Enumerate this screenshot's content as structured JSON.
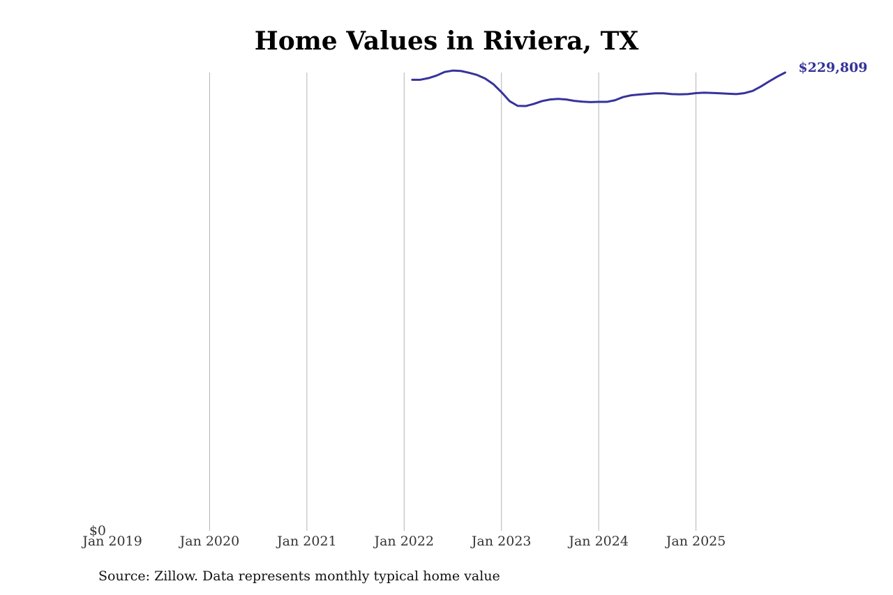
{
  "title": "Home Values in Riviera, TX",
  "source_note": "Source: Zillow. Data represents monthly typical home value",
  "colors": {
    "line": "#36339a",
    "grid": "#b3b3b3",
    "text": "#333333"
  },
  "chart_data": {
    "type": "line",
    "title": "Home Values in Riviera, TX",
    "xlabel": "",
    "ylabel": "",
    "grid": "vertical",
    "xlim": [
      "2019-01",
      "2026-01"
    ],
    "ylim": [
      0,
      229809
    ],
    "x_tick_labels": [
      "Jan 2019",
      "Jan 2020",
      "Jan 2021",
      "Jan 2022",
      "Jan 2023",
      "Jan 2024",
      "Jan 2025"
    ],
    "x_tick_dates": [
      "2019-01",
      "2020-01",
      "2021-01",
      "2022-01",
      "2023-01",
      "2024-01",
      "2025-01"
    ],
    "y_tick_labels": [
      "$0"
    ],
    "end_label": "$229,809",
    "series": [
      {
        "x": [
          "2022-02",
          "2022-03",
          "2022-04",
          "2022-05",
          "2022-06",
          "2022-07",
          "2022-08",
          "2022-09",
          "2022-10",
          "2022-11",
          "2022-12",
          "2023-01",
          "2023-02",
          "2023-03",
          "2023-04",
          "2023-05",
          "2023-06",
          "2023-07",
          "2023-08",
          "2023-09",
          "2023-10",
          "2023-11",
          "2023-12",
          "2024-01",
          "2024-02",
          "2024-03",
          "2024-04",
          "2024-05",
          "2024-06",
          "2024-07",
          "2024-08",
          "2024-09",
          "2024-10",
          "2024-11",
          "2024-12",
          "2025-01",
          "2025-02",
          "2025-03",
          "2025-04",
          "2025-05",
          "2025-06",
          "2025-07",
          "2025-08",
          "2025-09",
          "2025-10",
          "2025-11",
          "2025-12"
        ],
        "values": [
          226200,
          226200,
          227000,
          228300,
          230100,
          230800,
          230600,
          229700,
          228600,
          226800,
          224000,
          220000,
          215500,
          213100,
          213000,
          214100,
          215500,
          216300,
          216600,
          216300,
          215600,
          215200,
          215000,
          215100,
          215100,
          215900,
          217500,
          218400,
          218800,
          219100,
          219400,
          219400,
          219000,
          218900,
          219000,
          219500,
          219700,
          219600,
          219400,
          219200,
          219000,
          219500,
          220600,
          222800,
          225300,
          227700,
          229809
        ]
      }
    ]
  }
}
